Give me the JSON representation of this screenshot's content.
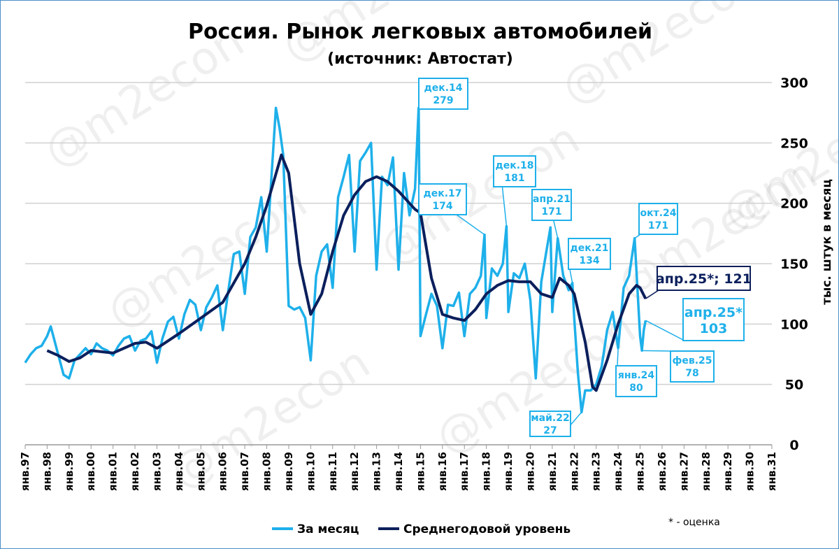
{
  "chart_data": {
    "type": "line",
    "title": "Россия. Рынок легковых автомобилей",
    "subtitle": "(источник: Автостат)",
    "ylabel": "тыс. штук в месяц",
    "ylim": [
      0,
      300
    ],
    "yticks": [
      "0",
      "50",
      "100",
      "150",
      "200",
      "250",
      "300"
    ],
    "xlim": [
      "1997-01",
      "2031-01"
    ],
    "xticks": [
      "янв.97",
      "янв.98",
      "янв.99",
      "янв.00",
      "янв.01",
      "янв.02",
      "янв.03",
      "янв.04",
      "янв.05",
      "янв.06",
      "янв.07",
      "янв.08",
      "янв.09",
      "янв.10",
      "янв.11",
      "янв.12",
      "янв.13",
      "янв.14",
      "янв.15",
      "янв.16",
      "янв.17",
      "янв.18",
      "янв.19",
      "янв.20",
      "янв.21",
      "янв.22",
      "янв.23",
      "янв.24",
      "янв.25",
      "янв.26",
      "янв.27",
      "янв.28",
      "янв.29",
      "янв.30",
      "янв.31"
    ],
    "grid": true,
    "legend_position": "bottom",
    "colors": {
      "monthly": "#1EB0EA",
      "average": "#0B1F5C",
      "grid": "#D0D0D0"
    },
    "series": [
      {
        "name": "За месяц",
        "points": [
          [
            "1997-01",
            68
          ],
          [
            "1997-04",
            75
          ],
          [
            "1997-07",
            80
          ],
          [
            "1997-10",
            82
          ],
          [
            "1998-01",
            90
          ],
          [
            "1998-03",
            98
          ],
          [
            "1998-07",
            75
          ],
          [
            "1998-10",
            58
          ],
          [
            "1999-01",
            55
          ],
          [
            "1999-04",
            70
          ],
          [
            "1999-07",
            75
          ],
          [
            "1999-10",
            80
          ],
          [
            "2000-01",
            75
          ],
          [
            "2000-04",
            84
          ],
          [
            "2000-07",
            80
          ],
          [
            "2000-10",
            78
          ],
          [
            "2001-01",
            74
          ],
          [
            "2001-04",
            82
          ],
          [
            "2001-07",
            88
          ],
          [
            "2001-10",
            90
          ],
          [
            "2002-01",
            78
          ],
          [
            "2002-04",
            86
          ],
          [
            "2002-07",
            88
          ],
          [
            "2002-10",
            94
          ],
          [
            "2003-01",
            68
          ],
          [
            "2003-04",
            88
          ],
          [
            "2003-07",
            102
          ],
          [
            "2003-10",
            106
          ],
          [
            "2004-01",
            88
          ],
          [
            "2004-04",
            108
          ],
          [
            "2004-07",
            120
          ],
          [
            "2004-10",
            116
          ],
          [
            "2005-01",
            95
          ],
          [
            "2005-04",
            114
          ],
          [
            "2005-07",
            122
          ],
          [
            "2005-10",
            132
          ],
          [
            "2006-01",
            95
          ],
          [
            "2006-04",
            128
          ],
          [
            "2006-07",
            158
          ],
          [
            "2006-10",
            160
          ],
          [
            "2007-01",
            125
          ],
          [
            "2007-04",
            172
          ],
          [
            "2007-07",
            180
          ],
          [
            "2007-10",
            205
          ],
          [
            "2008-01",
            160
          ],
          [
            "2008-04",
            232
          ],
          [
            "2008-06",
            279
          ],
          [
            "2008-08",
            262
          ],
          [
            "2008-10",
            240
          ],
          [
            "2009-01",
            115
          ],
          [
            "2009-04",
            112
          ],
          [
            "2009-07",
            114
          ],
          [
            "2009-10",
            105
          ],
          [
            "2010-01",
            70
          ],
          [
            "2010-04",
            140
          ],
          [
            "2010-07",
            160
          ],
          [
            "2010-10",
            166
          ],
          [
            "2011-01",
            130
          ],
          [
            "2011-04",
            205
          ],
          [
            "2011-07",
            222
          ],
          [
            "2011-10",
            240
          ],
          [
            "2012-01",
            160
          ],
          [
            "2012-04",
            235
          ],
          [
            "2012-07",
            242
          ],
          [
            "2012-10",
            250
          ],
          [
            "2013-01",
            145
          ],
          [
            "2013-04",
            222
          ],
          [
            "2013-07",
            215
          ],
          [
            "2013-10",
            238
          ],
          [
            "2014-01",
            145
          ],
          [
            "2014-04",
            225
          ],
          [
            "2014-07",
            190
          ],
          [
            "2014-10",
            212
          ],
          [
            "2014-12",
            279
          ],
          [
            "2015-01",
            90
          ],
          [
            "2015-04",
            108
          ],
          [
            "2015-07",
            125
          ],
          [
            "2015-10",
            115
          ],
          [
            "2016-01",
            80
          ],
          [
            "2016-04",
            116
          ],
          [
            "2016-07",
            115
          ],
          [
            "2016-10",
            126
          ],
          [
            "2017-01",
            90
          ],
          [
            "2017-04",
            125
          ],
          [
            "2017-07",
            130
          ],
          [
            "2017-10",
            140
          ],
          [
            "2017-12",
            174
          ],
          [
            "2018-01",
            105
          ],
          [
            "2018-04",
            146
          ],
          [
            "2018-07",
            140
          ],
          [
            "2018-10",
            150
          ],
          [
            "2018-12",
            181
          ],
          [
            "2019-01",
            110
          ],
          [
            "2019-04",
            142
          ],
          [
            "2019-07",
            138
          ],
          [
            "2019-10",
            150
          ],
          [
            "2020-01",
            120
          ],
          [
            "2020-04",
            55
          ],
          [
            "2020-07",
            135
          ],
          [
            "2020-10",
            162
          ],
          [
            "2020-12",
            180
          ],
          [
            "2021-01",
            110
          ],
          [
            "2021-04",
            171
          ],
          [
            "2021-07",
            140
          ],
          [
            "2021-10",
            128
          ],
          [
            "2021-12",
            134
          ],
          [
            "2022-01",
            105
          ],
          [
            "2022-03",
            60
          ],
          [
            "2022-05",
            27
          ],
          [
            "2022-07",
            45
          ],
          [
            "2022-10",
            45
          ],
          [
            "2023-01",
            50
          ],
          [
            "2023-04",
            65
          ],
          [
            "2023-07",
            95
          ],
          [
            "2023-10",
            110
          ],
          [
            "2024-01",
            80
          ],
          [
            "2024-04",
            130
          ],
          [
            "2024-07",
            140
          ],
          [
            "2024-10",
            171
          ],
          [
            "2025-01",
            90
          ],
          [
            "2025-02",
            78
          ],
          [
            "2025-03",
            95
          ],
          [
            "2025-04",
            103
          ]
        ]
      },
      {
        "name": "Среднегодовой уровень",
        "points": [
          [
            "1998-01",
            78
          ],
          [
            "1998-07",
            74
          ],
          [
            "1999-01",
            69
          ],
          [
            "1999-07",
            72
          ],
          [
            "2000-01",
            78
          ],
          [
            "2001-01",
            76
          ],
          [
            "2002-01",
            84
          ],
          [
            "2002-07",
            85
          ],
          [
            "2003-01",
            80
          ],
          [
            "2004-01",
            92
          ],
          [
            "2005-01",
            105
          ],
          [
            "2006-01",
            118
          ],
          [
            "2007-01",
            150
          ],
          [
            "2007-07",
            172
          ],
          [
            "2008-01",
            198
          ],
          [
            "2008-09",
            240
          ],
          [
            "2009-01",
            225
          ],
          [
            "2009-07",
            150
          ],
          [
            "2010-01",
            108
          ],
          [
            "2010-07",
            125
          ],
          [
            "2011-01",
            160
          ],
          [
            "2011-07",
            190
          ],
          [
            "2012-01",
            207
          ],
          [
            "2012-07",
            218
          ],
          [
            "2013-01",
            222
          ],
          [
            "2013-07",
            218
          ],
          [
            "2014-01",
            210
          ],
          [
            "2014-10",
            195
          ],
          [
            "2015-01",
            192
          ],
          [
            "2015-07",
            138
          ],
          [
            "2016-01",
            108
          ],
          [
            "2016-07",
            105
          ],
          [
            "2017-01",
            103
          ],
          [
            "2017-07",
            112
          ],
          [
            "2018-01",
            125
          ],
          [
            "2018-07",
            132
          ],
          [
            "2019-01",
            136
          ],
          [
            "2019-07",
            135
          ],
          [
            "2020-01",
            135
          ],
          [
            "2020-07",
            125
          ],
          [
            "2021-01",
            122
          ],
          [
            "2021-05",
            138
          ],
          [
            "2021-10",
            132
          ],
          [
            "2022-01",
            125
          ],
          [
            "2022-07",
            85
          ],
          [
            "2022-11",
            48
          ],
          [
            "2023-01",
            45
          ],
          [
            "2023-07",
            70
          ],
          [
            "2024-01",
            100
          ],
          [
            "2024-07",
            125
          ],
          [
            "2024-11",
            132
          ],
          [
            "2025-01",
            130
          ],
          [
            "2025-04",
            121
          ]
        ]
      }
    ],
    "annotations": [
      {
        "label": "дек.14",
        "value": "279"
      },
      {
        "label": "дек.17",
        "value": "174"
      },
      {
        "label": "дек.18",
        "value": "181"
      },
      {
        "label": "апр.21",
        "value": "171"
      },
      {
        "label": "дек.21",
        "value": "134"
      },
      {
        "label": "май.22",
        "value": "27"
      },
      {
        "label": "янв.24",
        "value": "80"
      },
      {
        "label": "окт.24",
        "value": "171"
      },
      {
        "label": "фев.25",
        "value": "78"
      },
      {
        "label": "апр.25*",
        "value": "103"
      },
      {
        "label": "апр.25*; 121",
        "value": ""
      }
    ],
    "footnote": "* - оценка",
    "watermark": "@m2econ"
  }
}
